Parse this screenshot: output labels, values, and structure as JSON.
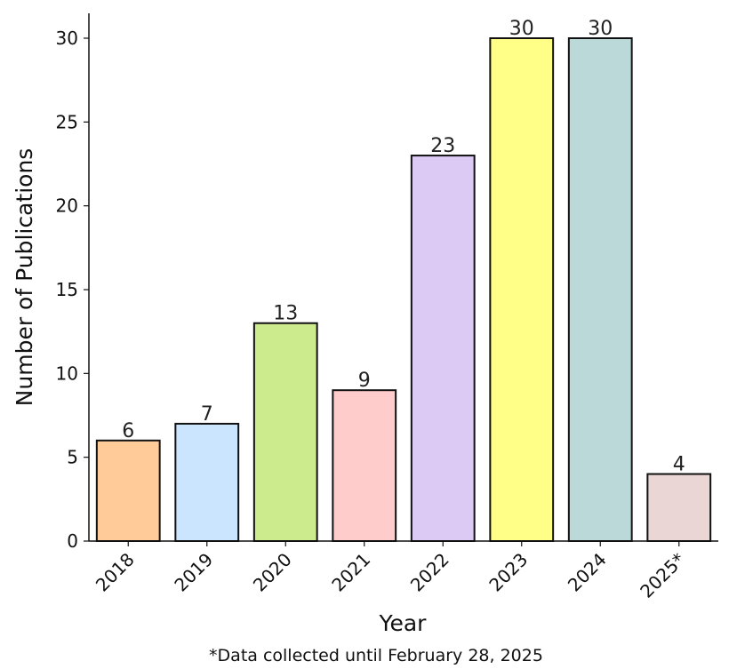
{
  "chart_data": {
    "type": "bar",
    "categories": [
      "2018",
      "2019",
      "2020",
      "2021",
      "2022",
      "2023",
      "2024",
      "2025*"
    ],
    "values": [
      6,
      7,
      13,
      9,
      23,
      30,
      30,
      4
    ],
    "colors": [
      "#ffcc99",
      "#cce5ff",
      "#cceb8c",
      "#ffcccc",
      "#dccaf5",
      "#ffff88",
      "#bcd9d9",
      "#ebd6d6"
    ],
    "edge_color": "#111111",
    "title": "",
    "xlabel": "Year",
    "ylabel": "Number of Publications",
    "ylim": [
      0,
      30
    ],
    "yticks": [
      0,
      5,
      10,
      15,
      20,
      25,
      30
    ],
    "grid": false,
    "footnote": "*Data collected until February 28, 2025"
  }
}
